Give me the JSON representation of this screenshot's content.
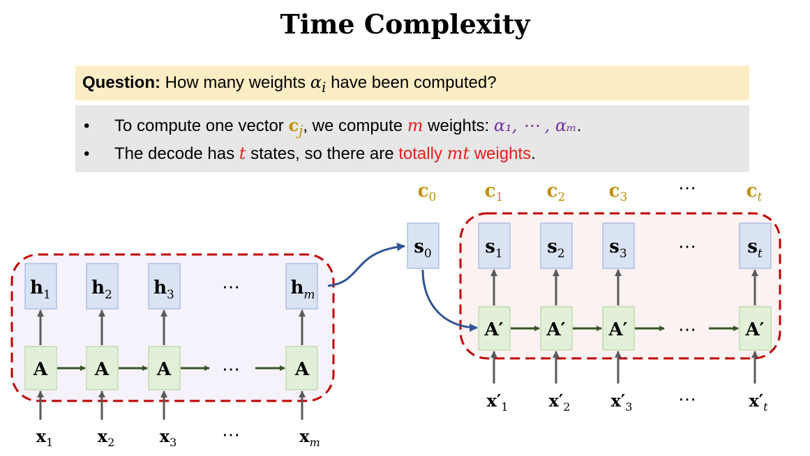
{
  "title": "Time Complexity",
  "question": {
    "label": "Question:",
    "text_before": "How many weights",
    "alpha": "α",
    "alpha_sub": "i",
    "text_after": "have been computed?"
  },
  "bullets": [
    {
      "marker": "•",
      "t1": "To compute one vector",
      "c": "c",
      "c_sub": "j",
      "t2": ", we compute",
      "m": "m",
      "t3": "weights:",
      "alphas": "α₁, ⋯ , αₘ",
      "t4": "."
    },
    {
      "marker": "•",
      "t1": "The decode has",
      "t": "t",
      "t2": "states, so there are",
      "red_text": "totally",
      "mt": "mt",
      "red_tail": "weights",
      "t3": "."
    }
  ],
  "encoder": {
    "h_labels": [
      "h",
      "h",
      "h",
      "h"
    ],
    "h_subs": [
      "1",
      "2",
      "3",
      "m"
    ],
    "a_label": "A",
    "x_labels": [
      "x",
      "x",
      "x",
      "x"
    ],
    "x_subs": [
      "1",
      "2",
      "3",
      "m"
    ],
    "dots": "⋯"
  },
  "decoder": {
    "s0": "s",
    "s0_sub": "0",
    "s_labels": [
      "s",
      "s",
      "s",
      "s"
    ],
    "s_subs": [
      "1",
      "2",
      "3",
      "t"
    ],
    "a_label": "A′",
    "x_labels": [
      "x′",
      "x′",
      "x′",
      "x′"
    ],
    "x_subs": [
      "1",
      "2",
      "3",
      "t"
    ],
    "c_labels": [
      "c",
      "c",
      "c",
      "c",
      "c"
    ],
    "c_subs": [
      "0",
      "1",
      "2",
      "3",
      "t"
    ],
    "dots": "⋯"
  },
  "colors": {
    "red": "#e81e1e",
    "purple": "#7030a0",
    "gold": "#bf9000",
    "green_arrow": "#375623",
    "blue_arrow": "#2f5597",
    "h_fill": "#dae3f3",
    "a_fill": "#e2f0d9",
    "dashed_border": "#c00000"
  }
}
